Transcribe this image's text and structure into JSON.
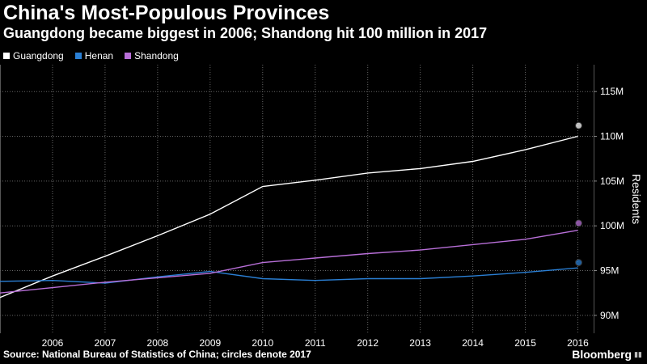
{
  "title": "China's Most-Populous Provinces",
  "subtitle": "Guangdong became biggest in 2006; Shandong hit 100 million in 2017",
  "legend": [
    {
      "label": "Guangdong",
      "color": "#ffffff"
    },
    {
      "label": "Henan",
      "color": "#2a7fd4"
    },
    {
      "label": "Shandong",
      "color": "#b86fd8"
    }
  ],
  "source": "Source: National Bureau of Statistics of China; circles denote 2017",
  "brand": "Bloomberg",
  "brand_icon": "bar-chart-icon",
  "chart_data": {
    "type": "line",
    "title": "China's Most-Populous Provinces",
    "subtitle": "Guangdong became biggest in 2006; Shandong hit 100 million in 2017",
    "xlabel": "",
    "ylabel": "Residents",
    "x": [
      2005,
      2006,
      2007,
      2008,
      2009,
      2010,
      2011,
      2012,
      2013,
      2014,
      2015,
      2016
    ],
    "xticks": [
      "2006",
      "2007",
      "2008",
      "2009",
      "2010",
      "2011",
      "2012",
      "2013",
      "2014",
      "2015",
      "2016"
    ],
    "xtick_values": [
      2006,
      2007,
      2008,
      2009,
      2010,
      2011,
      2012,
      2013,
      2014,
      2015,
      2016
    ],
    "xlim": [
      2005,
      2016.3
    ],
    "yticks": [
      "90M",
      "95M",
      "100M",
      "105M",
      "110M",
      "115M"
    ],
    "ytick_values": [
      90,
      95,
      100,
      105,
      110,
      115
    ],
    "ylim": [
      88,
      118
    ],
    "y_axis_position": "right",
    "grid": true,
    "legend_position": "top-left",
    "series": [
      {
        "name": "Guangdong",
        "color": "#ffffff",
        "values": [
          92.0,
          94.4,
          96.6,
          98.9,
          101.3,
          104.4,
          105.1,
          105.9,
          106.4,
          107.2,
          108.5,
          110.0
        ],
        "marker_2017": 111.2
      },
      {
        "name": "Henan",
        "color": "#2a7fd4",
        "values": [
          93.8,
          93.9,
          93.6,
          94.3,
          94.9,
          94.1,
          93.9,
          94.1,
          94.1,
          94.4,
          94.8,
          95.3
        ],
        "marker_2017": 95.9
      },
      {
        "name": "Shandong",
        "color": "#b86fd8",
        "values": [
          92.5,
          93.1,
          93.7,
          94.2,
          94.7,
          95.9,
          96.4,
          96.9,
          97.3,
          97.9,
          98.5,
          99.5
        ],
        "marker_2017": 100.3
      }
    ]
  }
}
